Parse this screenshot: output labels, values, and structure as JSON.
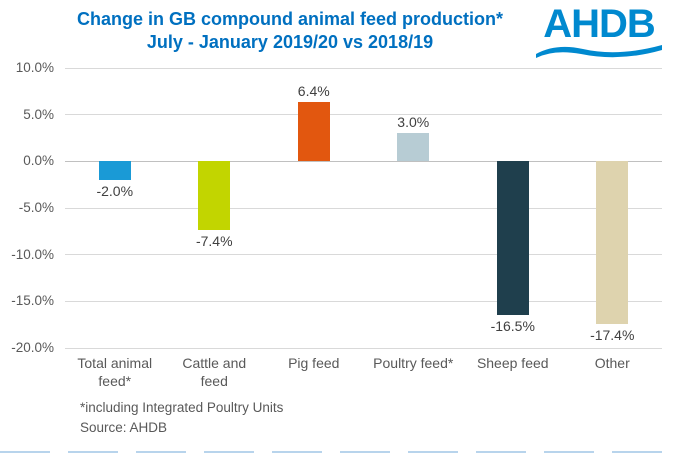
{
  "header": {
    "title_line1": "Change in GB compound animal feed production*",
    "title_line2": "July - January 2019/20 vs 2018/19",
    "logo_text": "AHDB"
  },
  "chart_data": {
    "type": "bar",
    "title": "Change in GB compound animal feed production* July - January 2019/20 vs 2018/19",
    "categories": [
      "Total animal feed*",
      "Cattle and feed",
      "Pig feed",
      "Poultry feed*",
      "Sheep feed",
      "Other"
    ],
    "values": [
      -2.0,
      -7.4,
      6.4,
      3.0,
      -16.5,
      -17.4
    ],
    "value_labels": [
      "-2.0%",
      "-7.4%",
      "6.4%",
      "3.0%",
      "-16.5%",
      "-17.4%"
    ],
    "bar_colors": [
      "#1a9ad6",
      "#c2d500",
      "#e2570f",
      "#b7ccd4",
      "#1f3f4d",
      "#ded3ae"
    ],
    "xlabel": "",
    "ylabel": "",
    "ylim": [
      -20,
      10
    ],
    "ytick_step": 5,
    "ytick_labels": [
      "10.0%",
      "5.0%",
      "0.0%",
      "-5.0%",
      "-10.0%",
      "-15.0%",
      "-20.0%"
    ],
    "grid": true,
    "legend": "none"
  },
  "footnotes": {
    "note1": "*including Integrated Poultry Units",
    "note2": "Source: AHDB"
  },
  "colors": {
    "title_blue": "#0070c0",
    "logo_blue": "#0089cf",
    "axis_text_gray": "#595959",
    "gridline_gray": "#d9d9d9"
  }
}
